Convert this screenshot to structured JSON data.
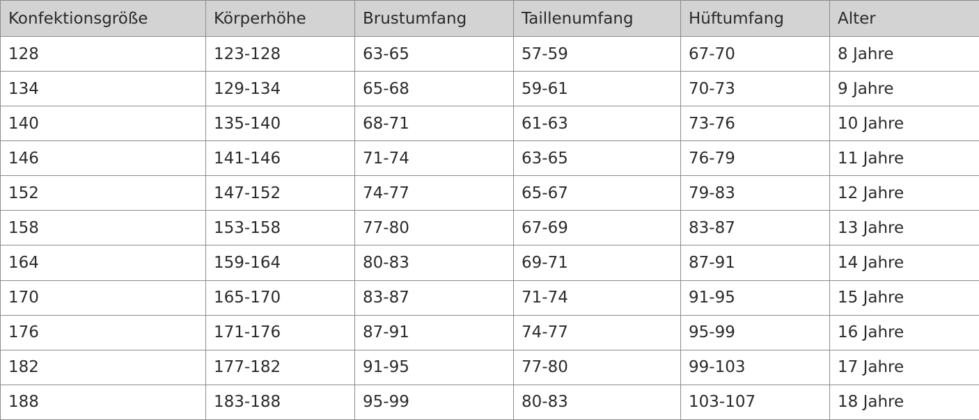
{
  "colors": {
    "header_bg": "#d3d3d3",
    "border": "#8a8a8a",
    "text": "#2a2a2a"
  },
  "headers": [
    "Konfektionsgröße",
    "Körperhöhe",
    "Brustumfang",
    "Taillenumfang",
    "Hüftumfang",
    "Alter"
  ],
  "rows": [
    [
      "128",
      "123-128",
      "63-65",
      "57-59",
      "67-70",
      "8 Jahre"
    ],
    [
      "134",
      "129-134",
      "65-68",
      "59-61",
      "70-73",
      "9 Jahre"
    ],
    [
      "140",
      "135-140",
      "68-71",
      "61-63",
      "73-76",
      "10 Jahre"
    ],
    [
      "146",
      "141-146",
      "71-74",
      "63-65",
      "76-79",
      "11 Jahre"
    ],
    [
      "152",
      "147-152",
      "74-77",
      "65-67",
      "79-83",
      "12 Jahre"
    ],
    [
      "158",
      "153-158",
      "77-80",
      "67-69",
      "83-87",
      "13 Jahre"
    ],
    [
      "164",
      "159-164",
      "80-83",
      "69-71",
      "87-91",
      "14 Jahre"
    ],
    [
      "170",
      "165-170",
      "83-87",
      "71-74",
      "91-95",
      "15 Jahre"
    ],
    [
      "176",
      "171-176",
      "87-91",
      "74-77",
      "95-99",
      "16 Jahre"
    ],
    [
      "182",
      "177-182",
      "91-95",
      "77-80",
      "99-103",
      "17 Jahre"
    ],
    [
      "188",
      "183-188",
      "95-99",
      "80-83",
      "103-107",
      "18 Jahre"
    ]
  ]
}
